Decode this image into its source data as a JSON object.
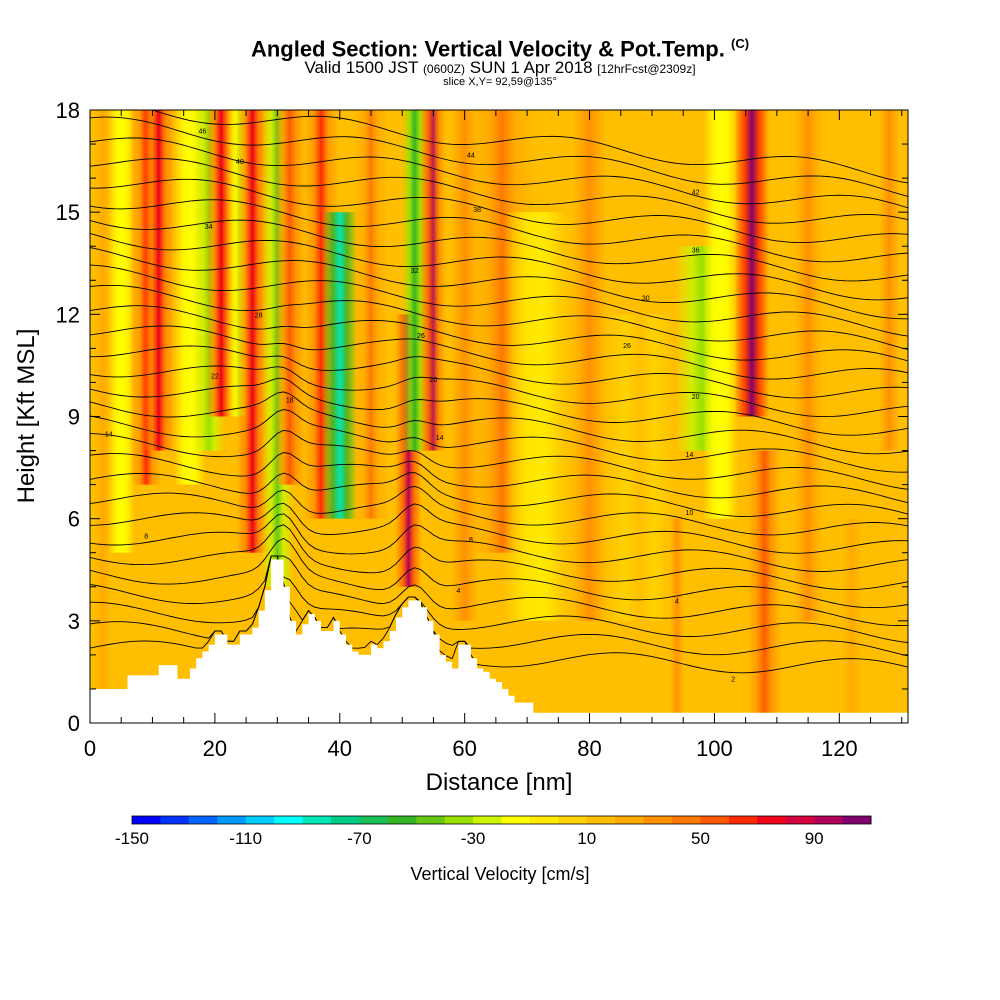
{
  "title": {
    "main": "Angled Section: Vertical Velocity & Pot.Temp.",
    "units_tag": "(C)",
    "valid_prefix": "Valid 1500 JST",
    "valid_utc": "(0600Z)",
    "valid_date": "SUN 1 Apr 2018",
    "forecast": "[12hrFcst@2309z]",
    "slice": "slice X,Y= 92,59@135°"
  },
  "chart_data": {
    "type": "heatmap",
    "xlabel": "Distance [nm]",
    "ylabel": "Height [Kft MSL]",
    "xlim": [
      0,
      131
    ],
    "ylim": [
      0,
      18
    ],
    "x_ticks": [
      0,
      20,
      40,
      60,
      80,
      100,
      120
    ],
    "y_ticks": [
      0,
      3,
      6,
      9,
      12,
      15,
      18
    ],
    "colorbar": {
      "title": "Vertical Velocity [cm/s]",
      "min": -150,
      "max": 110,
      "step": 10,
      "tick_labels": [
        "-150",
        "-110",
        "-70",
        "-30",
        "10",
        "50",
        "90"
      ],
      "tick_values": [
        -150,
        -110,
        -70,
        -30,
        10,
        50,
        90
      ],
      "colors": [
        "#0000ff",
        "#0033ff",
        "#0066ff",
        "#0099ff",
        "#00ccff",
        "#00ffff",
        "#00e6b8",
        "#00cc88",
        "#1abf55",
        "#33b526",
        "#66c814",
        "#99e000",
        "#ccf500",
        "#ffff00",
        "#ffea00",
        "#ffd400",
        "#ffbf00",
        "#ffaa00",
        "#ff9100",
        "#ff7a00",
        "#ff5a00",
        "#ff2a00",
        "#f0001a",
        "#d40040",
        "#b0005c",
        "#80006e"
      ]
    },
    "velocity_columns": [
      {
        "x": 2,
        "value": 20,
        "width": 2.5,
        "z0": 1,
        "z1": 18
      },
      {
        "x": 5,
        "value": -20,
        "width": 1.5,
        "z0": 5,
        "z1": 18
      },
      {
        "x": 9,
        "value": 60,
        "width": 1.8,
        "z0": 7,
        "z1": 18
      },
      {
        "x": 11,
        "value": 70,
        "width": 1.8,
        "z0": 8,
        "z1": 18
      },
      {
        "x": 16,
        "value": -20,
        "width": 1.8,
        "z0": 7,
        "z1": 18
      },
      {
        "x": 19,
        "value": -40,
        "width": 1.8,
        "z0": 8,
        "z1": 18
      },
      {
        "x": 21,
        "value": 70,
        "width": 1.8,
        "z0": 9,
        "z1": 18
      },
      {
        "x": 24,
        "value": -30,
        "width": 1.5,
        "z0": 9,
        "z1": 18
      },
      {
        "x": 26,
        "value": 70,
        "width": 1.8,
        "z0": 5,
        "z1": 18
      },
      {
        "x": 30,
        "value": -50,
        "width": 1.8,
        "z0": 4,
        "z1": 18
      },
      {
        "x": 32,
        "value": 50,
        "width": 1.8,
        "z0": 7,
        "z1": 18
      },
      {
        "x": 37,
        "value": 60,
        "width": 2,
        "z0": 6,
        "z1": 18
      },
      {
        "x": 40,
        "value": -90,
        "width": 2,
        "z0": 6,
        "z1": 15
      },
      {
        "x": 45,
        "value": 40,
        "width": 2,
        "z0": 6,
        "z1": 18
      },
      {
        "x": 51,
        "value": 90,
        "width": 1.5,
        "z0": 4,
        "z1": 12
      },
      {
        "x": 52,
        "value": -60,
        "width": 1.5,
        "z0": 8,
        "z1": 18
      },
      {
        "x": 55,
        "value": 90,
        "width": 1.5,
        "z0": 8,
        "z1": 18
      },
      {
        "x": 60,
        "value": 30,
        "width": 4,
        "z0": 3,
        "z1": 18
      },
      {
        "x": 66,
        "value": 40,
        "width": 4,
        "z0": 5,
        "z1": 18
      },
      {
        "x": 72,
        "value": -10,
        "width": 4,
        "z0": 3,
        "z1": 15
      },
      {
        "x": 80,
        "value": 30,
        "width": 5,
        "z0": 3,
        "z1": 18
      },
      {
        "x": 88,
        "value": 10,
        "width": 4,
        "z0": 3,
        "z1": 12
      },
      {
        "x": 94,
        "value": 30,
        "width": 2,
        "z0": 0,
        "z1": 6
      },
      {
        "x": 98,
        "value": -40,
        "width": 3,
        "z0": 8,
        "z1": 14
      },
      {
        "x": 101,
        "value": -20,
        "width": 2,
        "z0": 6,
        "z1": 18
      },
      {
        "x": 106,
        "value": 100,
        "width": 2,
        "z0": 9,
        "z1": 18
      },
      {
        "x": 108,
        "value": 50,
        "width": 2,
        "z0": 0,
        "z1": 8
      },
      {
        "x": 115,
        "value": 30,
        "width": 4,
        "z0": 3,
        "z1": 18
      },
      {
        "x": 122,
        "value": 20,
        "width": 3,
        "z0": 0,
        "z1": 6
      },
      {
        "x": 128,
        "value": 30,
        "width": 3,
        "z0": 8,
        "z1": 18
      }
    ],
    "terrain": {
      "x": [
        0,
        5,
        6,
        10,
        11,
        13,
        14,
        15,
        16,
        17,
        18,
        19,
        20,
        21,
        22,
        23,
        24,
        25,
        26,
        27,
        28,
        29,
        30,
        31,
        32,
        33,
        34,
        35,
        36,
        37,
        38,
        39,
        40,
        41,
        42,
        43,
        44,
        45,
        46,
        47,
        48,
        49,
        50,
        51,
        52,
        53,
        54,
        55,
        56,
        57,
        58,
        59,
        60,
        61,
        62,
        63,
        64,
        65,
        66,
        67,
        68,
        70,
        71,
        72,
        131
      ],
      "z": [
        1.0,
        1.0,
        1.4,
        1.4,
        1.7,
        1.7,
        1.3,
        1.3,
        1.6,
        1.9,
        2.1,
        2.3,
        2.6,
        2.6,
        2.3,
        2.3,
        2.6,
        2.6,
        2.8,
        3.3,
        3.9,
        4.8,
        4.8,
        4.0,
        3.0,
        2.6,
        2.9,
        3.2,
        3.0,
        2.7,
        2.7,
        3.0,
        2.6,
        2.3,
        2.1,
        2.0,
        2.0,
        2.3,
        2.2,
        2.4,
        2.7,
        3.1,
        3.4,
        3.6,
        3.6,
        3.4,
        3.0,
        2.6,
        2.0,
        1.8,
        1.6,
        2.3,
        2.3,
        1.9,
        1.6,
        1.5,
        1.3,
        1.2,
        1.0,
        0.8,
        0.6,
        0.6,
        0.3,
        0.3,
        0.3
      ]
    },
    "contour_labels": [
      {
        "x": 18,
        "z": 17.4,
        "text": "46"
      },
      {
        "x": 24,
        "z": 16.5,
        "text": "40"
      },
      {
        "x": 19,
        "z": 14.6,
        "text": "34"
      },
      {
        "x": 27,
        "z": 12,
        "text": "28"
      },
      {
        "x": 20,
        "z": 10.2,
        "text": "22"
      },
      {
        "x": 32,
        "z": 9.5,
        "text": "18"
      },
      {
        "x": 3,
        "z": 8.5,
        "text": "14"
      },
      {
        "x": 9,
        "z": 5.5,
        "text": "8"
      },
      {
        "x": 61,
        "z": 16.7,
        "text": "44"
      },
      {
        "x": 62,
        "z": 15.1,
        "text": "38"
      },
      {
        "x": 52,
        "z": 13.3,
        "text": "32"
      },
      {
        "x": 53,
        "z": 11.4,
        "text": "26"
      },
      {
        "x": 55,
        "z": 10.1,
        "text": "20"
      },
      {
        "x": 56,
        "z": 8.4,
        "text": "14"
      },
      {
        "x": 61,
        "z": 5.4,
        "text": "8"
      },
      {
        "x": 59,
        "z": 3.9,
        "text": "4"
      },
      {
        "x": 97,
        "z": 15.6,
        "text": "42"
      },
      {
        "x": 97,
        "z": 13.9,
        "text": "36"
      },
      {
        "x": 89,
        "z": 12.5,
        "text": "30"
      },
      {
        "x": 86,
        "z": 11.1,
        "text": "26"
      },
      {
        "x": 97,
        "z": 9.6,
        "text": "20"
      },
      {
        "x": 96,
        "z": 7.9,
        "text": "14"
      },
      {
        "x": 96,
        "z": 6.2,
        "text": "10"
      },
      {
        "x": 94,
        "z": 3.6,
        "text": "4"
      },
      {
        "x": 103,
        "z": 1.3,
        "text": "2"
      }
    ]
  }
}
